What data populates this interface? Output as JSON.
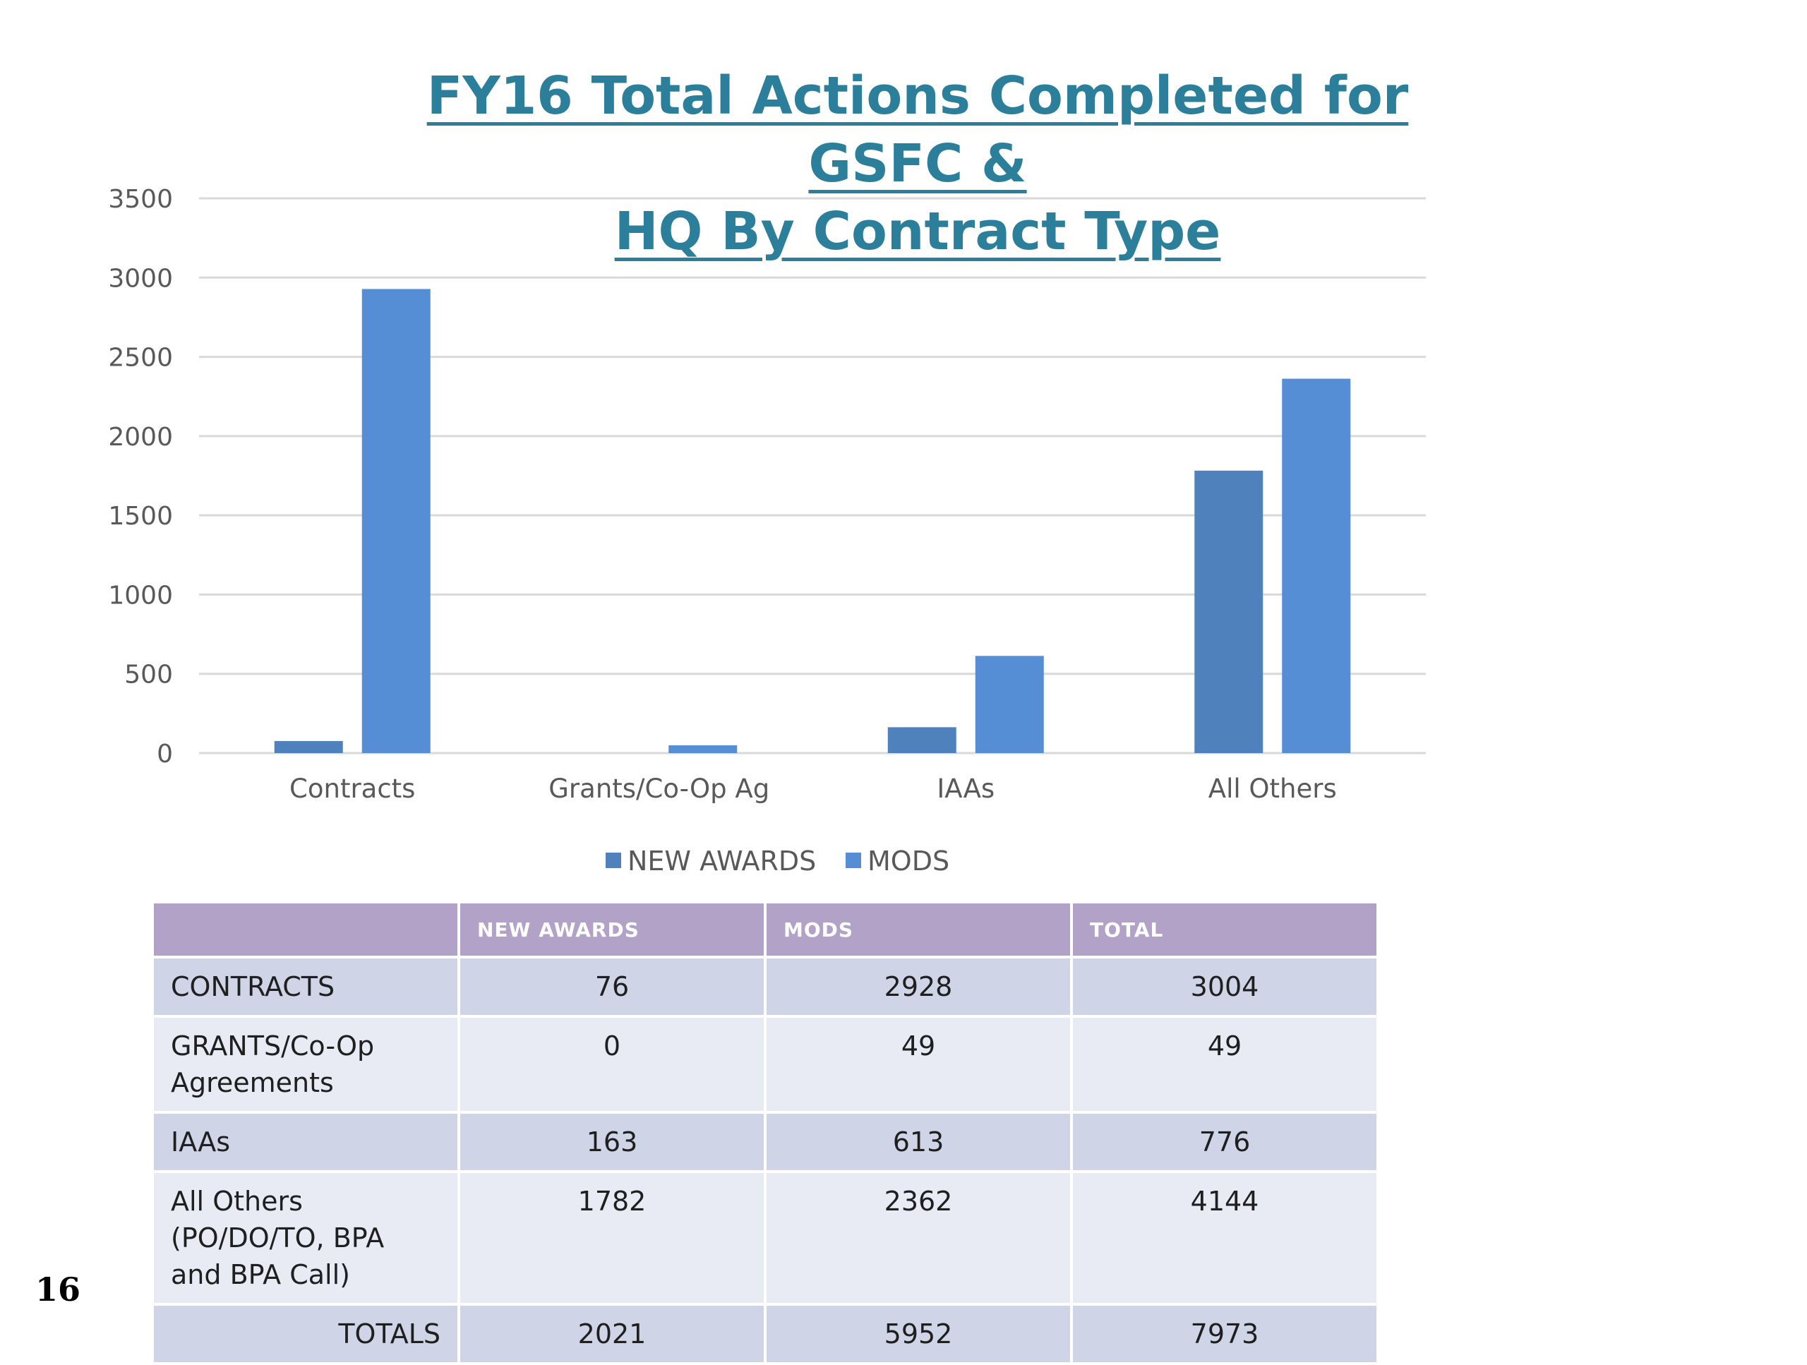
{
  "title": {
    "line1": "FY16 Total Actions Completed for GSFC &",
    "line2": "HQ By Contract Type"
  },
  "page_number": "16",
  "colors": {
    "title": "#2b7f9b",
    "new_awards": "#4f81bd",
    "mods": "#558ed5",
    "table_header": "#b3a2c8",
    "table_dark_row": "#cfd5e6",
    "table_light_row": "#e8ebf4"
  },
  "chart_data": {
    "type": "bar",
    "title": "FY16 Total Actions Completed for GSFC & HQ By Contract Type",
    "categories": [
      "Contracts",
      "Grants/Co-Op Ag",
      "IAAs",
      "All Others"
    ],
    "series": [
      {
        "name": "NEW AWARDS",
        "values": [
          76,
          0,
          163,
          1782
        ],
        "color": "#4f81bd"
      },
      {
        "name": "MODS",
        "values": [
          2928,
          49,
          613,
          2362
        ],
        "color": "#558ed5"
      }
    ],
    "ylim": [
      0,
      3500
    ],
    "yticks": [
      "0",
      "500",
      "1000",
      "1500",
      "2000",
      "2500",
      "3000",
      "3500"
    ],
    "grid": true,
    "legend_position": "bottom"
  },
  "table": {
    "headers": [
      "",
      "NEW AWARDS",
      "MODS",
      "TOTAL"
    ],
    "rows": [
      {
        "label": [
          "CONTRACTS"
        ],
        "values": [
          "76",
          "2928",
          "3004"
        ]
      },
      {
        "label": [
          "GRANTS/Co-Op",
          "Agreements"
        ],
        "values": [
          "0",
          "49",
          "49"
        ]
      },
      {
        "label": [
          "IAAs"
        ],
        "values": [
          "163",
          "613",
          "776"
        ]
      },
      {
        "label": [
          "All Others",
          "(PO/DO/TO, BPA",
          "and BPA Call)"
        ],
        "values": [
          "1782",
          "2362",
          "4144"
        ]
      }
    ],
    "totals": {
      "label": "TOTALS",
      "values": [
        "2021",
        "5952",
        "7973"
      ]
    }
  }
}
